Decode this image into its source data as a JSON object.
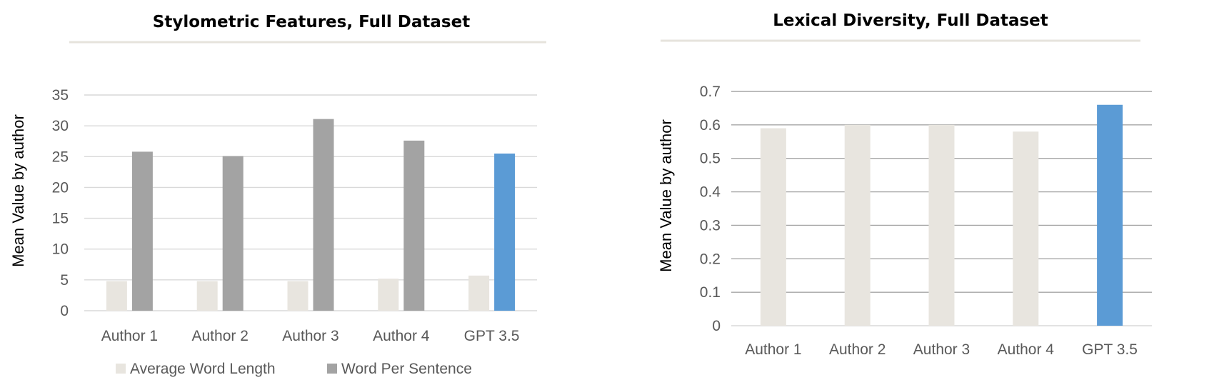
{
  "chart_data": [
    {
      "type": "bar",
      "title": "Stylometric Features, Full Dataset",
      "xlabel": "",
      "ylabel": "Mean Value by author",
      "ylim": [
        0,
        35
      ],
      "yticks": [
        0,
        5,
        10,
        15,
        20,
        25,
        30,
        35
      ],
      "grid": true,
      "legend": "bottom",
      "categories": [
        "Author 1",
        "Author 2",
        "Author 3",
        "Author 4",
        "GPT 3.5"
      ],
      "series": [
        {
          "name": "Average Word Length",
          "values": [
            4.8,
            4.8,
            4.8,
            5.2,
            5.7
          ],
          "color": "#e8e5df"
        },
        {
          "name": "Word Per Sentence",
          "values": [
            25.8,
            25.1,
            31.1,
            27.6,
            25.5
          ],
          "color": "#a3a3a3"
        }
      ],
      "highlight": {
        "category": "GPT 3.5",
        "series": "Word Per Sentence",
        "color": "#5b9bd5"
      }
    },
    {
      "type": "bar",
      "title": "Lexical Diversity, Full Dataset",
      "xlabel": "",
      "ylabel": "Mean Value by author",
      "ylim": [
        0,
        0.7
      ],
      "yticks": [
        "0",
        "0.1",
        "0.2",
        "0.3",
        "0.4",
        "0.5",
        "0.6",
        "0.7"
      ],
      "grid": true,
      "legend": "none",
      "categories": [
        "Author 1",
        "Author 2",
        "Author 3",
        "Author 4",
        "GPT 3.5"
      ],
      "series": [
        {
          "name": "Lexical Diversity",
          "values": [
            0.59,
            0.6,
            0.6,
            0.58,
            0.66
          ],
          "color": "#e8e5df"
        }
      ],
      "highlight": {
        "category": "GPT 3.5",
        "series": "Lexical Diversity",
        "color": "#5b9bd5"
      }
    }
  ]
}
